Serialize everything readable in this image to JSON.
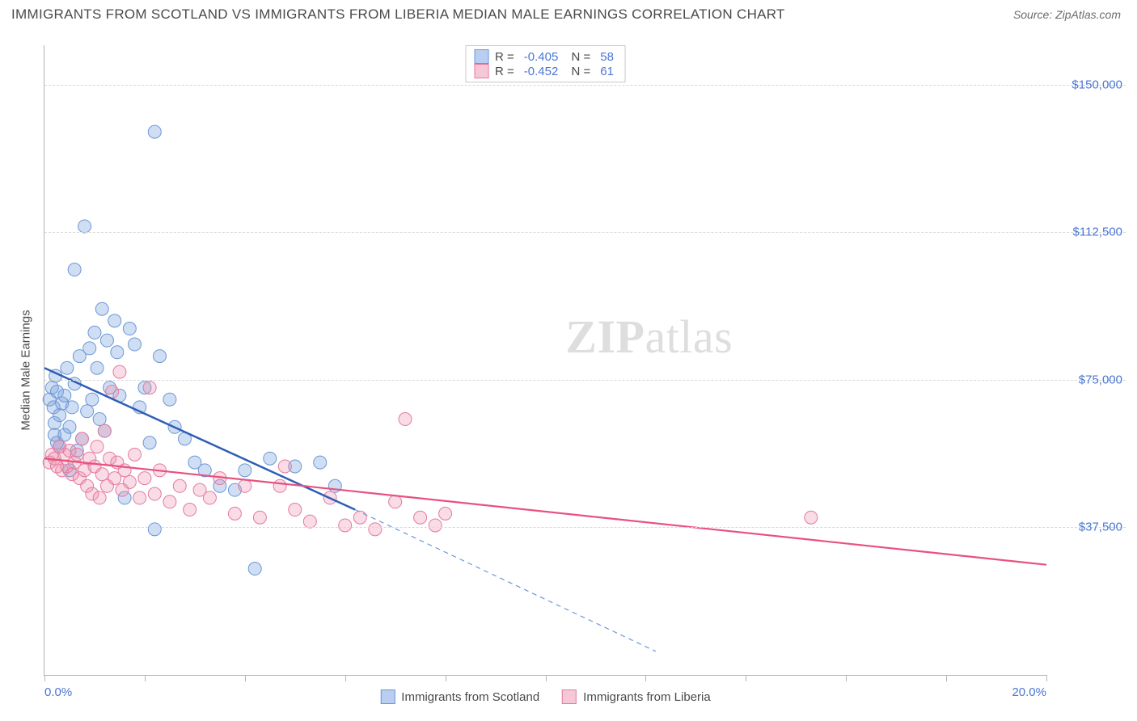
{
  "header": {
    "title": "IMMIGRANTS FROM SCOTLAND VS IMMIGRANTS FROM LIBERIA MEDIAN MALE EARNINGS CORRELATION CHART",
    "source": "Source: ZipAtlas.com"
  },
  "chart": {
    "type": "scatter",
    "y_axis_title": "Median Male Earnings",
    "watermark": "ZIPatlas",
    "background_color": "#ffffff",
    "grid_color": "#d8d8d8",
    "axis_color": "#b5b5b5",
    "label_color": "#4a76d4",
    "text_color": "#4a4a4a",
    "xlim": [
      0,
      20
    ],
    "ylim": [
      0,
      160000
    ],
    "x_ticks": [
      0,
      2,
      4,
      6,
      8,
      10,
      12,
      14,
      16,
      18,
      20
    ],
    "x_tick_labels": {
      "0": "0.0%",
      "20": "20.0%"
    },
    "y_ticks": [
      37500,
      75000,
      112500,
      150000
    ],
    "y_tick_labels": {
      "37500": "$37,500",
      "75000": "$75,000",
      "112500": "$112,500",
      "150000": "$150,000"
    },
    "series": [
      {
        "key": "scotland",
        "label": "Immigrants from Scotland",
        "color_fill": "rgba(120,160,220,0.35)",
        "color_stroke": "#6a98d8",
        "swatch_fill": "#b9cef0",
        "swatch_stroke": "#6a98d8",
        "marker_radius": 8,
        "trend": {
          "x1": 0,
          "y1": 78000,
          "x2": 6.2,
          "y2": 42000,
          "color": "#2e5fb5",
          "width": 2.5
        },
        "trend_ext": {
          "x1": 6.2,
          "y1": 42000,
          "x2": 12.2,
          "y2": 6000,
          "color": "#6a98d8",
          "dash": "6,5",
          "width": 1.2
        },
        "stats": {
          "R": "-0.405",
          "N": "58"
        },
        "points": [
          [
            0.1,
            70000
          ],
          [
            0.15,
            73000
          ],
          [
            0.18,
            68000
          ],
          [
            0.2,
            64000
          ],
          [
            0.2,
            61000
          ],
          [
            0.22,
            76000
          ],
          [
            0.25,
            59000
          ],
          [
            0.25,
            72000
          ],
          [
            0.3,
            66000
          ],
          [
            0.3,
            58000
          ],
          [
            0.35,
            69000
          ],
          [
            0.4,
            61000
          ],
          [
            0.4,
            71000
          ],
          [
            0.45,
            78000
          ],
          [
            0.5,
            63000
          ],
          [
            0.5,
            52000
          ],
          [
            0.55,
            68000
          ],
          [
            0.6,
            74000
          ],
          [
            0.6,
            103000
          ],
          [
            0.65,
            57000
          ],
          [
            0.7,
            81000
          ],
          [
            0.75,
            60000
          ],
          [
            0.8,
            114000
          ],
          [
            0.85,
            67000
          ],
          [
            0.9,
            83000
          ],
          [
            0.95,
            70000
          ],
          [
            1.0,
            87000
          ],
          [
            1.05,
            78000
          ],
          [
            1.1,
            65000
          ],
          [
            1.15,
            93000
          ],
          [
            1.2,
            62000
          ],
          [
            1.25,
            85000
          ],
          [
            1.3,
            73000
          ],
          [
            1.4,
            90000
          ],
          [
            1.45,
            82000
          ],
          [
            1.5,
            71000
          ],
          [
            1.6,
            45000
          ],
          [
            1.7,
            88000
          ],
          [
            1.8,
            84000
          ],
          [
            1.9,
            68000
          ],
          [
            2.0,
            73000
          ],
          [
            2.1,
            59000
          ],
          [
            2.2,
            37000
          ],
          [
            2.2,
            138000
          ],
          [
            2.3,
            81000
          ],
          [
            2.5,
            70000
          ],
          [
            2.6,
            63000
          ],
          [
            2.8,
            60000
          ],
          [
            3.0,
            54000
          ],
          [
            3.2,
            52000
          ],
          [
            3.5,
            48000
          ],
          [
            3.8,
            47000
          ],
          [
            4.0,
            52000
          ],
          [
            4.2,
            27000
          ],
          [
            4.5,
            55000
          ],
          [
            5.0,
            53000
          ],
          [
            5.5,
            54000
          ],
          [
            5.8,
            48000
          ]
        ]
      },
      {
        "key": "liberia",
        "label": "Immigrants from Liberia",
        "color_fill": "rgba(235,140,170,0.3)",
        "color_stroke": "#e47aa0",
        "swatch_fill": "#f6c8d7",
        "swatch_stroke": "#e47aa0",
        "marker_radius": 8,
        "trend": {
          "x1": 0,
          "y1": 55000,
          "x2": 20,
          "y2": 28000,
          "color": "#e8517e",
          "width": 2.2
        },
        "stats": {
          "R": "-0.452",
          "N": "61"
        },
        "points": [
          [
            0.1,
            54000
          ],
          [
            0.15,
            56000
          ],
          [
            0.2,
            55000
          ],
          [
            0.25,
            53000
          ],
          [
            0.3,
            58000
          ],
          [
            0.35,
            52000
          ],
          [
            0.4,
            56000
          ],
          [
            0.45,
            53000
          ],
          [
            0.5,
            57000
          ],
          [
            0.55,
            51000
          ],
          [
            0.6,
            54000
          ],
          [
            0.65,
            56000
          ],
          [
            0.7,
            50000
          ],
          [
            0.75,
            60000
          ],
          [
            0.8,
            52000
          ],
          [
            0.85,
            48000
          ],
          [
            0.9,
            55000
          ],
          [
            0.95,
            46000
          ],
          [
            1.0,
            53000
          ],
          [
            1.05,
            58000
          ],
          [
            1.1,
            45000
          ],
          [
            1.15,
            51000
          ],
          [
            1.2,
            62000
          ],
          [
            1.25,
            48000
          ],
          [
            1.3,
            55000
          ],
          [
            1.35,
            72000
          ],
          [
            1.4,
            50000
          ],
          [
            1.45,
            54000
          ],
          [
            1.5,
            77000
          ],
          [
            1.55,
            47000
          ],
          [
            1.6,
            52000
          ],
          [
            1.7,
            49000
          ],
          [
            1.8,
            56000
          ],
          [
            1.9,
            45000
          ],
          [
            2.0,
            50000
          ],
          [
            2.1,
            73000
          ],
          [
            2.2,
            46000
          ],
          [
            2.3,
            52000
          ],
          [
            2.5,
            44000
          ],
          [
            2.7,
            48000
          ],
          [
            2.9,
            42000
          ],
          [
            3.1,
            47000
          ],
          [
            3.3,
            45000
          ],
          [
            3.5,
            50000
          ],
          [
            3.8,
            41000
          ],
          [
            4.0,
            48000
          ],
          [
            4.3,
            40000
          ],
          [
            4.7,
            48000
          ],
          [
            5.0,
            42000
          ],
          [
            5.3,
            39000
          ],
          [
            5.7,
            45000
          ],
          [
            6.0,
            38000
          ],
          [
            6.3,
            40000
          ],
          [
            6.6,
            37000
          ],
          [
            7.0,
            44000
          ],
          [
            7.2,
            65000
          ],
          [
            7.5,
            40000
          ],
          [
            7.8,
            38000
          ],
          [
            8.0,
            41000
          ],
          [
            15.3,
            40000
          ],
          [
            4.8,
            53000
          ]
        ]
      }
    ]
  }
}
